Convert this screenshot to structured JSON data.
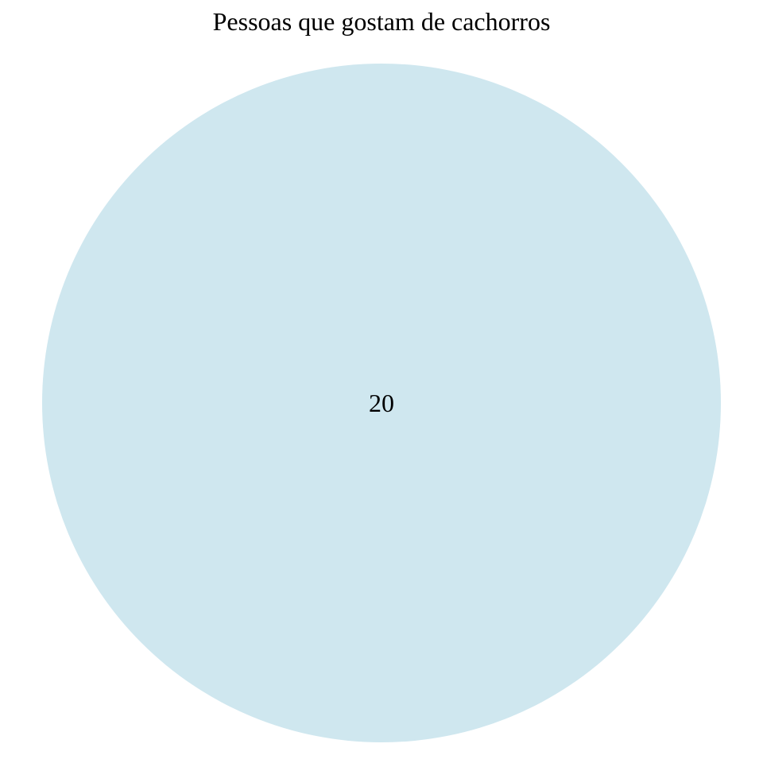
{
  "chart_data": {
    "type": "pie",
    "title": "Pessoas que gostam de cachorros",
    "slices": [
      {
        "value": 20,
        "label": "20",
        "color": "#cfe7ef"
      }
    ],
    "legend": "none"
  }
}
